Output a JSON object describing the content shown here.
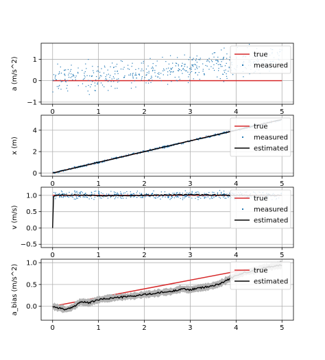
{
  "chart_data": [
    {
      "type": "scatter",
      "ylabel": "a (m/s^2)",
      "xlim": [
        -0.25,
        5.25
      ],
      "ylim": [
        -1.1,
        1.75
      ],
      "xticks": [
        "0",
        "1",
        "2",
        "3",
        "4",
        "5"
      ],
      "yticks": [
        {
          "v": -1,
          "label": "−1"
        },
        {
          "v": 0,
          "label": "0"
        },
        {
          "v": 1,
          "label": "1"
        }
      ],
      "grid": true,
      "legend": "top-right",
      "series": [
        {
          "name": "true",
          "kind": "line",
          "color": "#d62728",
          "x": [
            0,
            5
          ],
          "y": [
            0,
            0
          ]
        },
        {
          "name": "measured",
          "kind": "scatter",
          "color": "#1f77b4",
          "x_range": [
            0,
            5
          ],
          "trend": [
            0.0,
            1.0
          ],
          "noise": 0.32,
          "n": 500
        }
      ]
    },
    {
      "type": "line",
      "ylabel": "x (m)",
      "xlim": [
        -0.25,
        5.25
      ],
      "ylim": [
        -0.3,
        5.4
      ],
      "xticks": [
        "0",
        "1",
        "2",
        "3",
        "4",
        "5"
      ],
      "yticks": [
        {
          "v": 0,
          "label": "0"
        },
        {
          "v": 2,
          "label": "2"
        },
        {
          "v": 4,
          "label": "4"
        }
      ],
      "grid": true,
      "legend": "top-right",
      "series": [
        {
          "name": "true",
          "kind": "line",
          "color": "#d62728",
          "x": [
            0,
            5
          ],
          "y": [
            0,
            5
          ]
        },
        {
          "name": "measured",
          "kind": "scatter",
          "color": "#1f77b4",
          "x_range": [
            0,
            5
          ],
          "trend": [
            0,
            5
          ],
          "noise": 0.05,
          "n": 500
        },
        {
          "name": "estimated",
          "kind": "line",
          "color": "#000000",
          "x": [
            0,
            1,
            2,
            3,
            4,
            5
          ],
          "y": [
            0,
            1,
            2,
            3,
            4,
            5
          ]
        }
      ]
    },
    {
      "type": "line",
      "ylabel": "v (m/s)",
      "xlim": [
        -0.25,
        5.25
      ],
      "ylim": [
        -0.6,
        1.25
      ],
      "xticks": [
        "0",
        "1",
        "2",
        "3",
        "4",
        "5"
      ],
      "yticks": [
        {
          "v": -0.5,
          "label": "−0.5"
        },
        {
          "v": 0,
          "label": "0.0"
        },
        {
          "v": 0.5,
          "label": "0.5"
        },
        {
          "v": 1,
          "label": "1.0"
        }
      ],
      "grid": true,
      "legend": "top-right",
      "series": [
        {
          "name": "true",
          "kind": "line",
          "color": "#d62728",
          "x": [
            0,
            5
          ],
          "y": [
            1,
            1
          ]
        },
        {
          "name": "measured",
          "kind": "scatter",
          "color": "#1f77b4",
          "x_range": [
            0,
            5
          ],
          "trend": [
            1,
            1
          ],
          "noise": 0.06,
          "n": 500
        },
        {
          "name": "estimated",
          "kind": "line",
          "color": "#000000",
          "x": [
            0,
            0.02,
            0.05,
            0.5,
            1,
            2,
            3,
            4,
            5
          ],
          "y": [
            0,
            0.95,
            1.0,
            1.01,
            0.99,
            1.0,
            1.02,
            1.0,
            1.0
          ]
        }
      ]
    },
    {
      "type": "line",
      "ylabel": "a_bias (m/s^2)",
      "xlim": [
        -0.25,
        5.25
      ],
      "ylim": [
        -0.32,
        1.08
      ],
      "xticks": [
        "0",
        "1",
        "2",
        "3",
        "4",
        "5"
      ],
      "yticks": [
        {
          "v": 0,
          "label": "0.0"
        },
        {
          "v": 0.5,
          "label": "0.5"
        },
        {
          "v": 1,
          "label": "1.0"
        }
      ],
      "grid": true,
      "legend": "top-right",
      "series": [
        {
          "name": "true",
          "kind": "line",
          "color": "#d62728",
          "x": [
            0,
            5
          ],
          "y": [
            0,
            1
          ]
        },
        {
          "name": "estimated",
          "kind": "line",
          "color": "#000000",
          "x": [
            0,
            0.1,
            0.2,
            0.3,
            0.4,
            0.5,
            0.6,
            0.8,
            1.0,
            1.2,
            1.4,
            1.6,
            1.8,
            2.0,
            2.2,
            2.4,
            2.6,
            2.8,
            3.0,
            3.2,
            3.4,
            3.6,
            3.8,
            4.0,
            4.2,
            4.4,
            4.6,
            4.8,
            5.0
          ],
          "y": [
            0,
            -0.03,
            -0.05,
            -0.08,
            -0.04,
            0.02,
            0.1,
            0.08,
            0.15,
            0.18,
            0.2,
            0.22,
            0.24,
            0.27,
            0.29,
            0.32,
            0.34,
            0.4,
            0.38,
            0.42,
            0.45,
            0.5,
            0.6,
            0.7,
            0.78,
            0.82,
            0.88,
            0.92,
            0.95
          ],
          "band": 0.08,
          "band_color": "#b3b3b3"
        }
      ]
    }
  ]
}
